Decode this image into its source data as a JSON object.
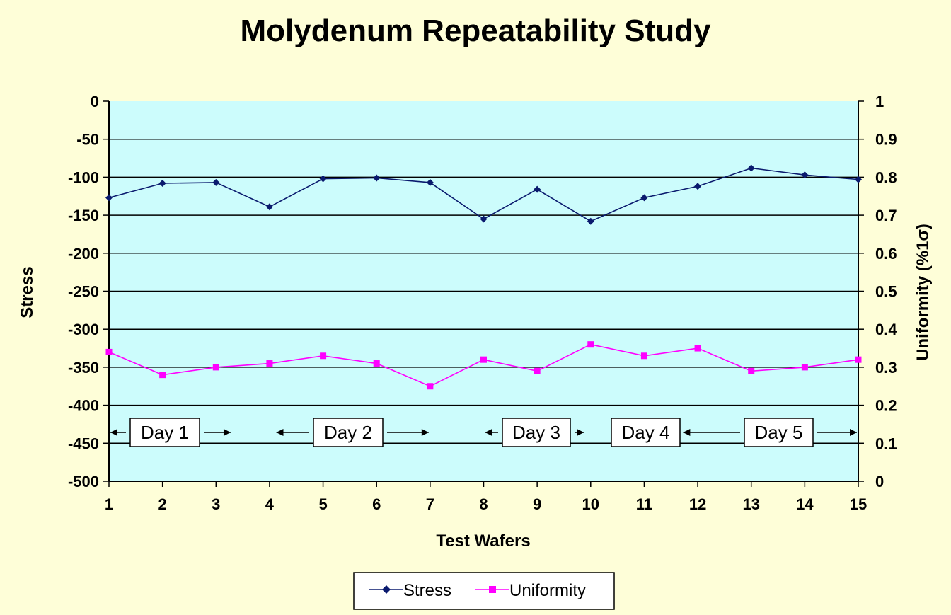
{
  "colors": {
    "background": "#fefed8",
    "plot_area": "#ccfcfc",
    "stress": "#0a1a6e",
    "uniformity": "#ff00ff",
    "gridline": "#000000"
  },
  "chart_data": {
    "type": "line",
    "title": "Molydenum Repeatability Study",
    "xlabel": "Test Wafers",
    "ylabel": "Stress",
    "y2label": "Uniformity (%1σ)",
    "categories": [
      "1",
      "2",
      "3",
      "4",
      "5",
      "6",
      "7",
      "8",
      "9",
      "10",
      "11",
      "12",
      "13",
      "14",
      "15"
    ],
    "ylim": [
      -500,
      0
    ],
    "y2lim": [
      0,
      1
    ],
    "yticks": [
      "0",
      "-50",
      "-100",
      "-150",
      "-200",
      "-250",
      "-300",
      "-350",
      "-400",
      "-450",
      "-500"
    ],
    "y2ticks": [
      "1",
      "0.9",
      "0.8",
      "0.7",
      "0.6",
      "0.5",
      "0.4",
      "0.3",
      "0.2",
      "0.1",
      "0"
    ],
    "grid": true,
    "legend_position": "bottom",
    "series": [
      {
        "name": "Stress",
        "axis": "left",
        "marker": "diamond",
        "values": [
          -127,
          -108,
          -107,
          -139,
          -102,
          -101,
          -107,
          -155,
          -116,
          -158,
          -127,
          -112,
          -88,
          -97,
          -103
        ]
      },
      {
        "name": "Uniformity",
        "axis": "right",
        "marker": "square",
        "values": [
          0.34,
          0.28,
          0.3,
          0.31,
          0.33,
          0.31,
          0.25,
          0.32,
          0.29,
          0.36,
          0.33,
          0.35,
          0.29,
          0.3,
          0.32
        ]
      }
    ],
    "annotations": [
      {
        "text": "Day 1",
        "from": 1,
        "to": 3.3
      },
      {
        "text": "Day 2",
        "from": 4.1,
        "to": 7.0
      },
      {
        "text": "Day 3",
        "from": 8.0,
        "to": 9.9
      },
      {
        "text": "Day 4",
        "from": 10.3,
        "to": 11.3
      },
      {
        "text": "Day 5",
        "from": 11.7,
        "to": 15
      }
    ]
  }
}
